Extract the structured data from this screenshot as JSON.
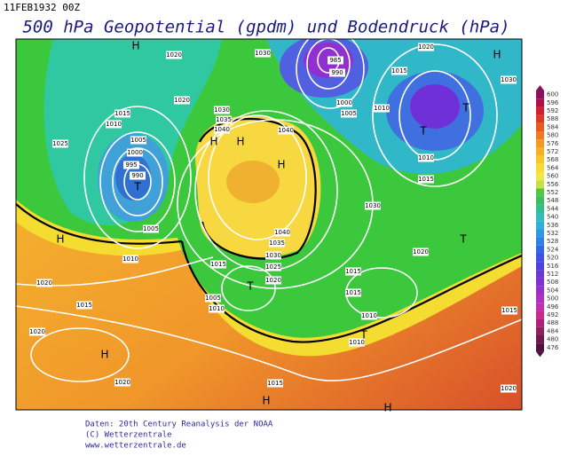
{
  "header": {
    "date": "11FEB1932 00Z",
    "title": "500 hPa Geopotential (gpdm) und Bodendruck (hPa)"
  },
  "legend": {
    "levels": [
      600,
      596,
      592,
      588,
      584,
      580,
      576,
      572,
      568,
      564,
      560,
      556,
      552,
      548,
      544,
      540,
      536,
      532,
      528,
      524,
      520,
      516,
      512,
      508,
      504,
      500,
      496,
      492,
      488,
      484,
      480,
      476
    ]
  },
  "pressure_labels": [
    1020,
    1030,
    1020,
    985,
    990,
    1015,
    1030,
    1000,
    1005,
    1010,
    1020,
    1015,
    1010,
    1030,
    1035,
    1040,
    1040,
    1025,
    1005,
    1000,
    995,
    990,
    1010,
    1015,
    1030,
    1040,
    1005,
    1010,
    1035,
    1030,
    1025,
    1020,
    1015,
    1020,
    1015,
    1005,
    1010,
    1015,
    1010,
    1020,
    1015,
    1020,
    1020,
    1015,
    1010,
    1015,
    1020
  ],
  "centers": [
    "H",
    "H",
    "T",
    "T",
    "H",
    "H",
    "H",
    "T",
    "H",
    "T",
    "T",
    "H",
    "H",
    "H",
    "T"
  ],
  "footer": {
    "source": "Daten: 20th Century Reanalysis der NOAA",
    "copyright": "(C) Wetterzentrale",
    "url": "www.wetterzentrale.de"
  }
}
